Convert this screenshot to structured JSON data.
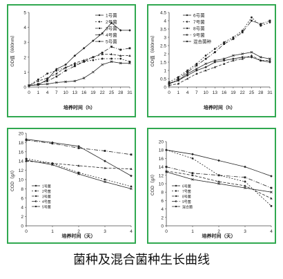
{
  "caption": "菌种及混合菌种生长曲线",
  "colors": {
    "frame": "#2fa84f",
    "series": "#222222"
  },
  "chart_data": [
    {
      "type": "line",
      "x": [
        0,
        1,
        4,
        7,
        10,
        13,
        16,
        19,
        22,
        25,
        28,
        31
      ],
      "xticks": [
        "0",
        "1",
        "4",
        "7",
        "10",
        "13",
        "16",
        "19",
        "22",
        "25",
        "28",
        "31"
      ],
      "xlabel": "培养时间（h）",
      "ylabel": "OD值（600nm）",
      "ylim": [
        0,
        5
      ],
      "yticks": [
        0,
        1,
        2,
        3,
        4,
        5
      ],
      "legend_position": "top-right",
      "series": [
        {
          "name": "1号菌",
          "values": [
            0.1,
            0.15,
            0.5,
            1.2,
            1.5,
            2.1,
            2.6,
            3.1,
            3.6,
            4.3,
            3.8,
            3.8
          ]
        },
        {
          "name": "2号菌",
          "values": [
            0.1,
            0.5,
            0.9,
            1.1,
            1.3,
            1.5,
            1.7,
            1.8,
            1.9,
            1.9,
            1.9,
            1.7
          ]
        },
        {
          "name": "3号菌",
          "values": [
            0.1,
            0.4,
            0.6,
            0.9,
            1.3,
            1.6,
            1.8,
            2.0,
            2.2,
            2.2,
            2.1,
            2.1
          ]
        },
        {
          "name": "4号菌",
          "values": [
            0.1,
            0.2,
            0.4,
            0.7,
            1.1,
            1.4,
            1.7,
            2.0,
            2.3,
            2.7,
            2.5,
            2.6
          ]
        },
        {
          "name": "5号菌",
          "values": [
            0.1,
            0.15,
            0.2,
            0.3,
            0.35,
            0.4,
            0.6,
            1.0,
            1.5,
            1.7,
            1.6,
            1.6
          ]
        }
      ]
    },
    {
      "type": "line",
      "x": [
        0,
        1,
        4,
        7,
        10,
        13,
        16,
        19,
        22,
        25,
        28,
        31
      ],
      "xticks": [
        "0",
        "1",
        "4",
        "7",
        "10",
        "13",
        "16",
        "19",
        "22",
        "25",
        "28",
        "31"
      ],
      "xlabel": "培养时间（h）",
      "ylabel": "OD值（600nm）",
      "ylim": [
        0,
        4.5
      ],
      "yticks": [
        0,
        0.5,
        1,
        1.5,
        2,
        2.5,
        3,
        3.5,
        4,
        4.5
      ],
      "legend_position": "top-left",
      "series": [
        {
          "name": "6号菌",
          "values": [
            0.2,
            0.4,
            0.7,
            1.0,
            1.2,
            1.5,
            1.6,
            1.7,
            1.8,
            1.8,
            1.6,
            1.5
          ]
        },
        {
          "name": "7号菌",
          "values": [
            0.3,
            0.6,
            1.0,
            1.4,
            1.9,
            2.3,
            2.7,
            3.0,
            3.4,
            4.2,
            3.7,
            3.9
          ]
        },
        {
          "name": "8号菌",
          "values": [
            0.1,
            0.2,
            0.5,
            0.8,
            1.0,
            1.2,
            1.4,
            1.6,
            1.7,
            1.9,
            1.6,
            1.6
          ]
        },
        {
          "name": "9号菌",
          "values": [
            0.2,
            0.5,
            0.9,
            1.3,
            1.7,
            2.1,
            2.6,
            2.9,
            3.3,
            4.0,
            3.8,
            4.0
          ]
        },
        {
          "name": "混合菌种",
          "values": [
            0.2,
            0.4,
            0.8,
            1.1,
            1.4,
            1.6,
            1.7,
            1.9,
            2.0,
            2.1,
            1.8,
            1.7
          ]
        }
      ]
    },
    {
      "type": "line",
      "x": [
        0,
        1,
        2,
        3,
        4
      ],
      "xticks": [
        "0",
        "1",
        "2",
        "3",
        "4"
      ],
      "xlabel": "培养时间（天）",
      "ylabel": "COD（g/l）",
      "ylim": [
        0,
        20
      ],
      "yticks": [
        0,
        2,
        4,
        6,
        8,
        10,
        12,
        14,
        16,
        18,
        20
      ],
      "legend_position": "bottom-left",
      "series": [
        {
          "name": "1号菌",
          "values": [
            18.7,
            18.0,
            17.2,
            14.0,
            10.8
          ]
        },
        {
          "name": "2号菌",
          "values": [
            14.5,
            13.5,
            11.5,
            10.0,
            8.5
          ]
        },
        {
          "name": "3号菌",
          "values": [
            14.0,
            13.5,
            13.0,
            12.5,
            12.3
          ]
        },
        {
          "name": "4号菌",
          "values": [
            18.5,
            17.8,
            16.8,
            16.2,
            15.4
          ]
        },
        {
          "name": "5号菌",
          "values": [
            14.2,
            13.2,
            11.2,
            9.5,
            8.0
          ]
        }
      ]
    },
    {
      "type": "line",
      "x": [
        0,
        1,
        2,
        3,
        4
      ],
      "xticks": [
        "0",
        "1",
        "2",
        "3",
        "4"
      ],
      "xlabel": "培养时间（天）",
      "ylabel": "COD（g/l）",
      "ylim": [
        0,
        20
      ],
      "yticks": [
        0,
        2,
        4,
        6,
        8,
        10,
        12,
        14,
        16,
        18,
        20
      ],
      "legend_position": "bottom-left",
      "series": [
        {
          "name": "6号菌",
          "values": [
            18.0,
            17.0,
            15.5,
            14.0,
            11.8
          ]
        },
        {
          "name": "7号菌",
          "values": [
            18.0,
            16.0,
            12.0,
            10.5,
            4.7
          ]
        },
        {
          "name": "8号菌",
          "values": [
            13.0,
            12.0,
            10.5,
            9.5,
            6.5
          ]
        },
        {
          "name": "9号菌",
          "values": [
            14.0,
            12.5,
            12.0,
            11.5,
            9.0
          ]
        },
        {
          "name": "混合菌",
          "values": [
            12.8,
            11.0,
            10.0,
            9.0,
            8.0
          ]
        }
      ]
    }
  ]
}
